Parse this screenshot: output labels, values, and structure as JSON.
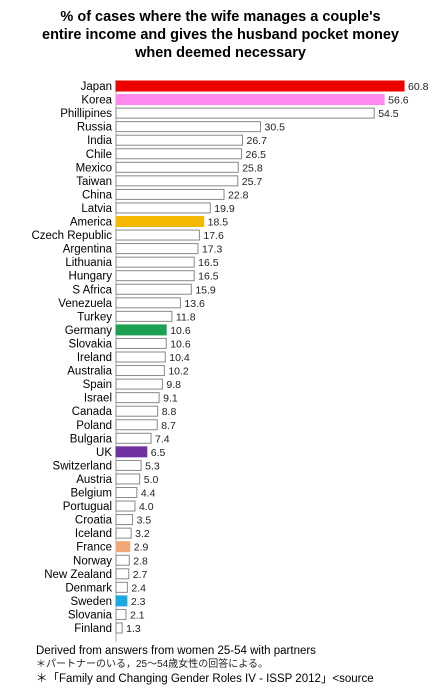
{
  "title_lines": [
    "% of cases where the wife manages a couple's",
    "entire income and gives the husband pocket money",
    "when deemed necessary"
  ],
  "chart_data": {
    "type": "bar",
    "orientation": "horizontal",
    "categories": [
      "Japan",
      "Korea",
      "Phillipines",
      "Russia",
      "India",
      "Chile",
      "Mexico",
      "Taiwan",
      "China",
      "Latvia",
      "America",
      "Czech Republic",
      "Argentina",
      "Lithuania",
      "Hungary",
      "S Africa",
      "Venezuela",
      "Turkey",
      "Germany",
      "Slovakia",
      "Ireland",
      "Australia",
      "Spain",
      "Israel",
      "Canada",
      "Poland",
      "Bulgaria",
      "UK",
      "Switzerland",
      "Austria",
      "Belgium",
      "Portugual",
      "Croatia",
      "Iceland",
      "France",
      "Norway",
      "New Zealand",
      "Denmark",
      "Sweden",
      "Slovania",
      "Finland"
    ],
    "values": [
      60.8,
      56.6,
      54.5,
      30.5,
      26.7,
      26.5,
      25.8,
      25.7,
      22.8,
      19.9,
      18.5,
      17.6,
      17.3,
      16.5,
      16.5,
      15.9,
      13.6,
      11.8,
      10.6,
      10.6,
      10.4,
      10.2,
      9.8,
      9.1,
      8.8,
      8.7,
      7.4,
      6.5,
      5.3,
      5.0,
      4.4,
      4.0,
      3.5,
      3.2,
      2.9,
      2.8,
      2.7,
      2.4,
      2.3,
      2.1,
      1.3
    ],
    "value_labels": [
      "60.8",
      "56.6",
      "54.5",
      "30.5",
      "26.7",
      "26.5",
      "25.8",
      "25.7",
      "22.8",
      "19.9",
      "18.5",
      "17.6",
      "17.3",
      "16.5",
      "16.5",
      "15.9",
      "13.6",
      "11.8",
      "10.6",
      "10.6",
      "10.4",
      "10.2",
      "9.8",
      "9.1",
      "8.8",
      "8.7",
      "7.4",
      "6.5",
      "5.3",
      "5.0",
      "4.4",
      "4.0",
      "3.5",
      "3.2",
      "2.9",
      "2.8",
      "2.7",
      "2.4",
      "2.3",
      "2.1",
      "1.3"
    ],
    "highlights": {
      "Japan": "#ee0000",
      "Korea": "#ff88ee",
      "America": "#f5b800",
      "Germany": "#1aa050",
      "UK": "#7030a0",
      "France": "#f0a878",
      "Sweden": "#1aa8e0"
    },
    "default_bar_fill": "#ffffff",
    "bar_stroke": "#888888",
    "xlim": [
      0,
      61
    ],
    "grid": false,
    "legend": "none"
  },
  "notes": {
    "line1": "Derived from answers from women 25-54 with partners",
    "line2": "＊パートナーのいる，25～54歳女性の回答による。",
    "line3": "＊「Family and Changing Gender Roles IV - ISSP 2012」<source"
  }
}
